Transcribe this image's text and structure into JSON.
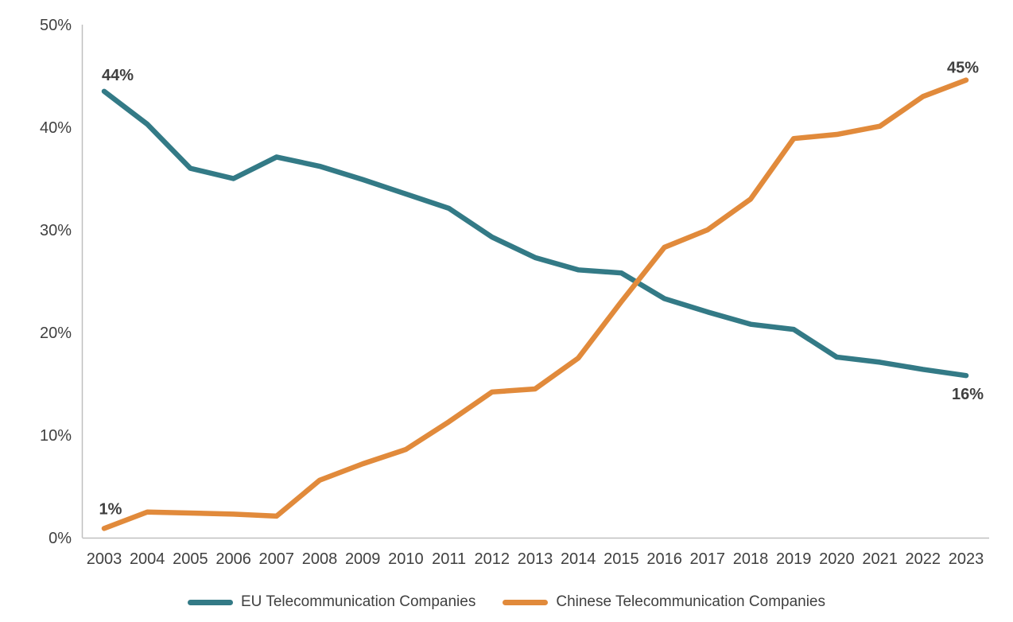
{
  "chart_data": {
    "type": "line",
    "title": "",
    "xlabel": "",
    "ylabel": "",
    "x": [
      "2003",
      "2004",
      "2005",
      "2006",
      "2007",
      "2008",
      "2009",
      "2010",
      "2011",
      "2012",
      "2013",
      "2014",
      "2015",
      "2016",
      "2017",
      "2018",
      "2019",
      "2020",
      "2021",
      "2022",
      "2023"
    ],
    "ylim": [
      0,
      50
    ],
    "y_ticks": [
      {
        "v": 0,
        "label": "0%"
      },
      {
        "v": 10,
        "label": "10%"
      },
      {
        "v": 20,
        "label": "20%"
      },
      {
        "v": 30,
        "label": "30%"
      },
      {
        "v": 40,
        "label": "40%"
      },
      {
        "v": 50,
        "label": "50%"
      }
    ],
    "grid": false,
    "legend_position": "bottom",
    "axis_color": "#BFBFBF",
    "text_color": "#404040",
    "series": [
      {
        "name": "EU Telecommunication Companies",
        "color": "#337A86",
        "values": [
          43.5,
          40.3,
          36.0,
          35.0,
          37.1,
          36.2,
          34.9,
          33.5,
          32.1,
          29.3,
          27.3,
          26.1,
          25.8,
          23.3,
          22.0,
          20.8,
          20.3,
          17.6,
          17.1,
          16.4,
          15.8
        ],
        "start_label": "44%",
        "end_label": "16%"
      },
      {
        "name": "Chinese Telecommunication Companies",
        "color": "#E18A3B",
        "values": [
          0.9,
          2.5,
          2.4,
          2.3,
          2.1,
          5.6,
          7.2,
          8.6,
          11.3,
          14.2,
          14.5,
          17.5,
          23.0,
          28.3,
          30.0,
          33.0,
          38.9,
          39.3,
          40.1,
          43.0,
          44.6
        ],
        "start_label": "1%",
        "end_label": "45%"
      }
    ]
  }
}
